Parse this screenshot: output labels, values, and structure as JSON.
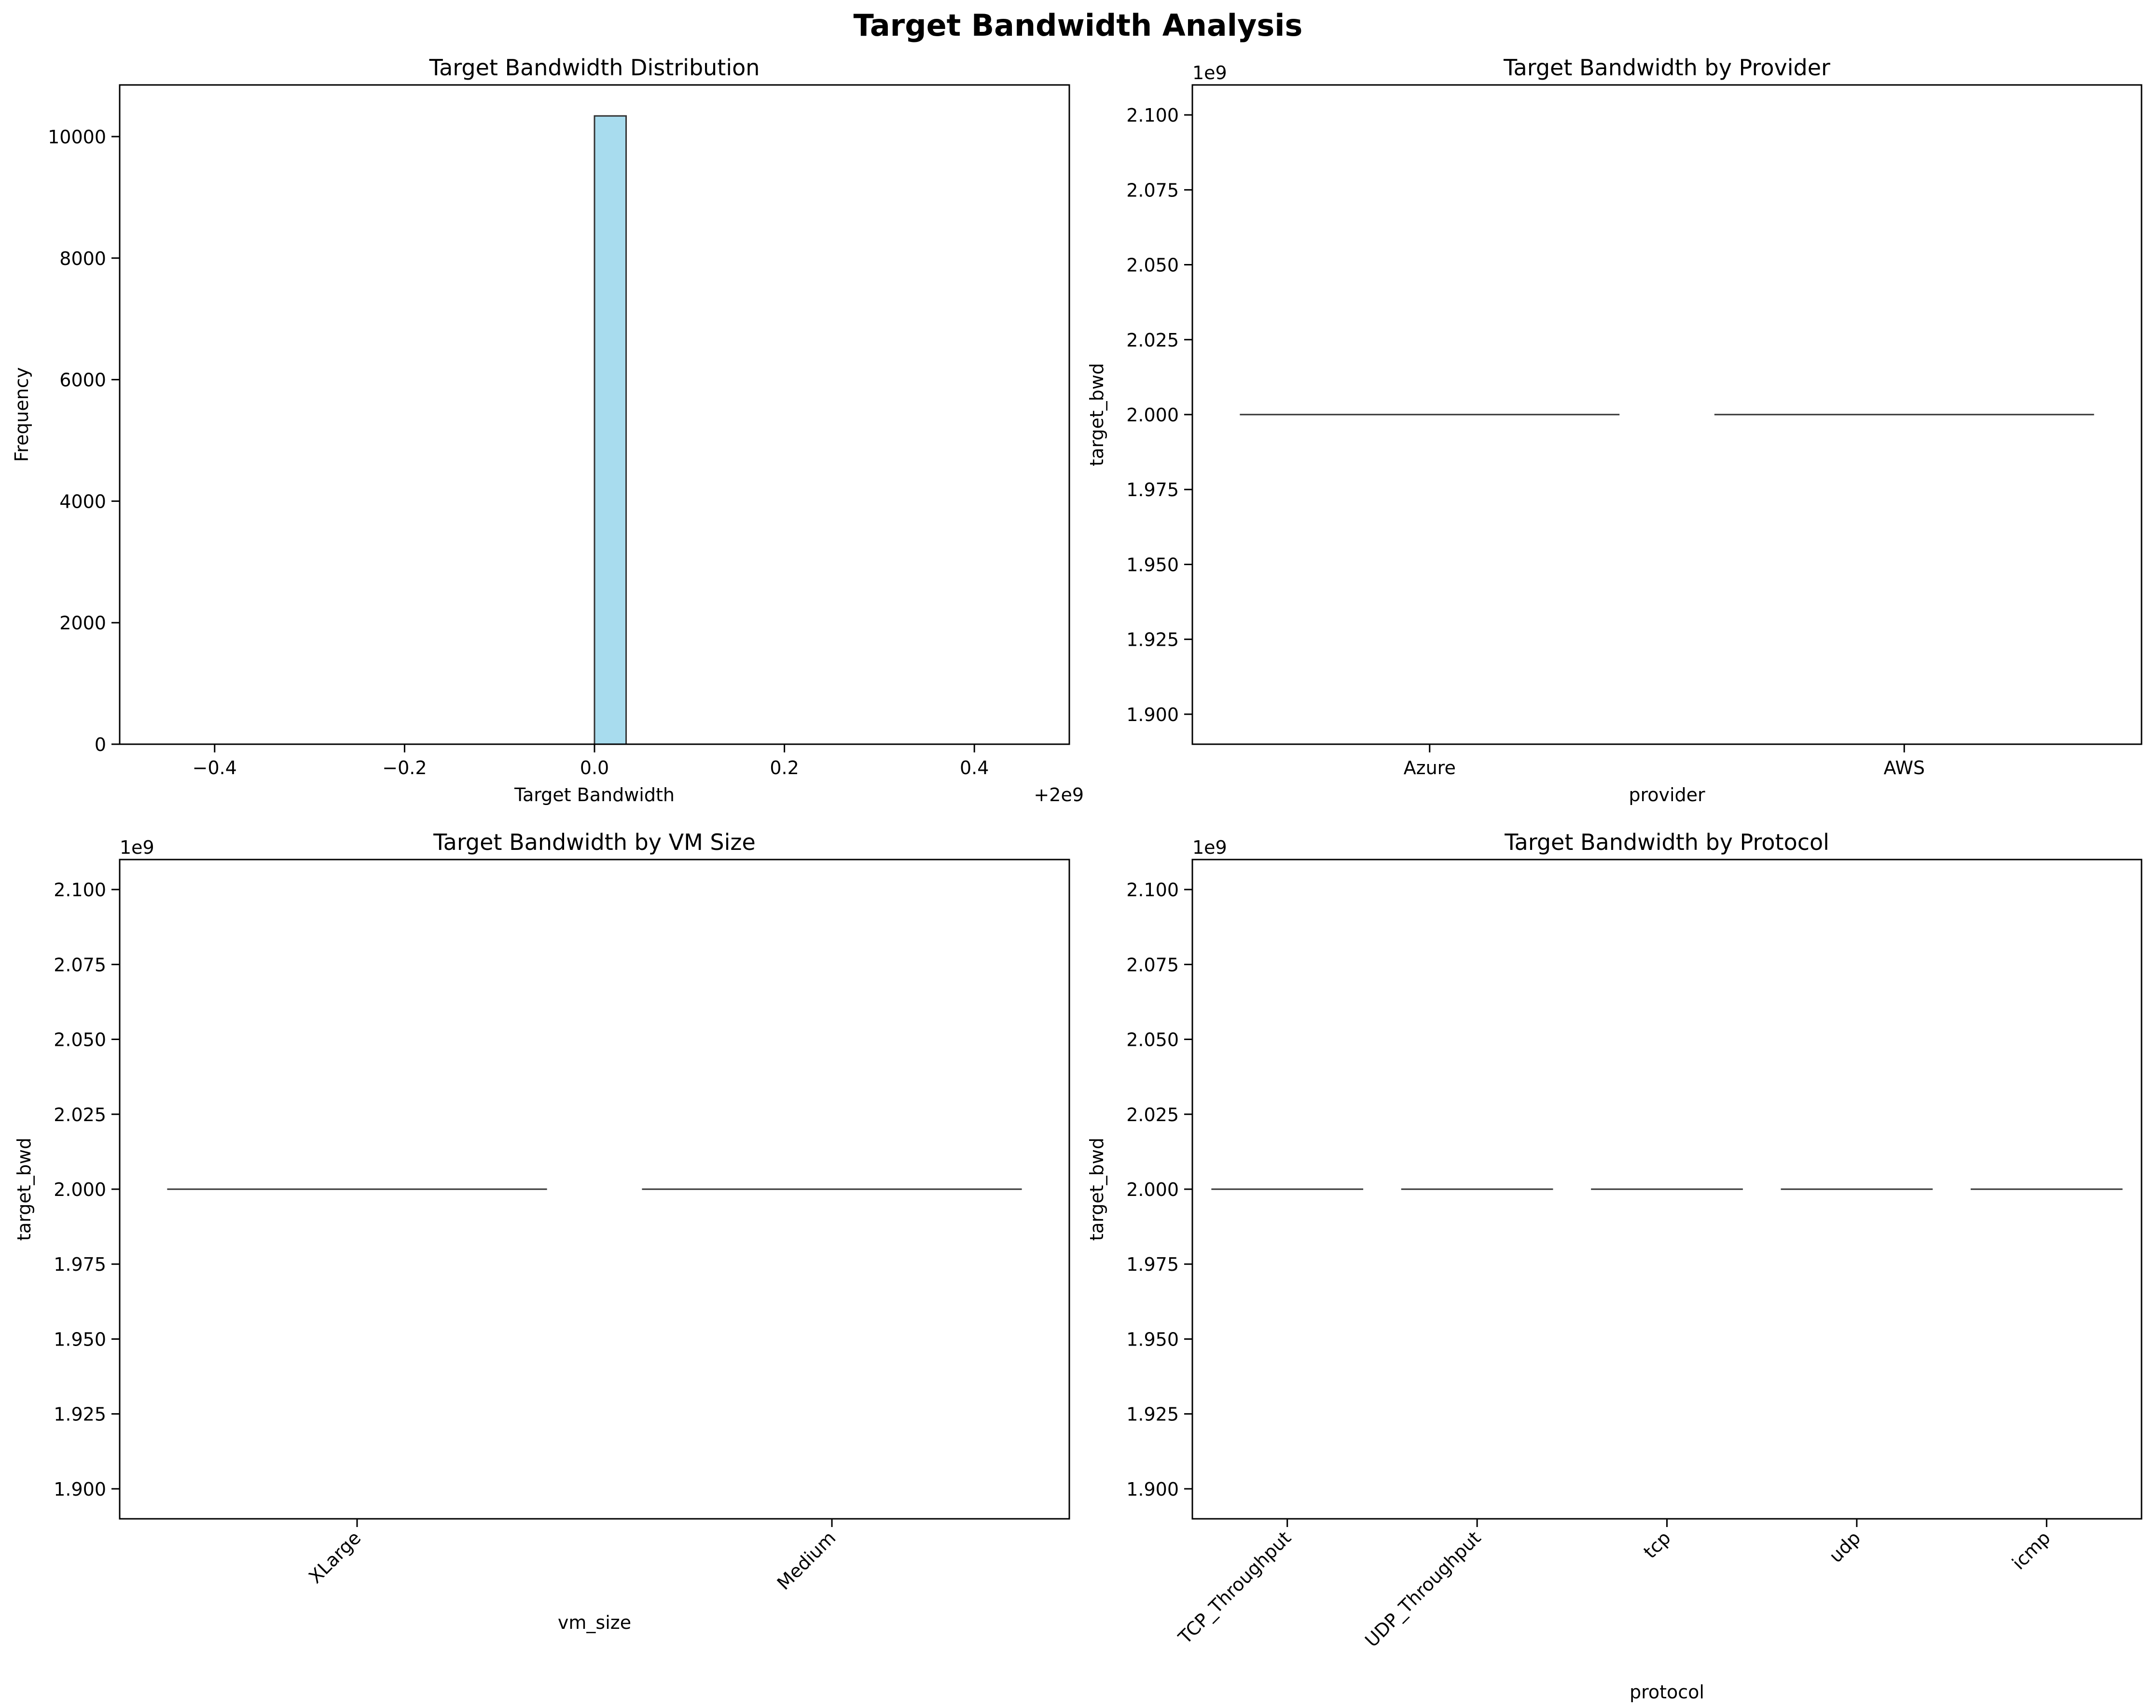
{
  "figure": {
    "suptitle": "Target Bandwidth Analysis"
  },
  "colors": {
    "hist_fill": "#a8dcee",
    "edge": "#333333",
    "text": "#000000"
  },
  "chart_data": [
    {
      "type": "bar",
      "title": "Target Bandwidth Distribution",
      "xlabel": "Target Bandwidth",
      "ylabel": "Frequency",
      "x_offset_label": "+2e9",
      "xlim": [
        -0.5,
        0.5
      ],
      "ylim": [
        0,
        10850
      ],
      "xticks": [
        -0.4,
        -0.2,
        0.0,
        0.2,
        0.4
      ],
      "xtick_labels": [
        "−0.4",
        "−0.2",
        "0.0",
        "0.2",
        "0.4"
      ],
      "yticks": [
        0,
        2000,
        4000,
        6000,
        8000,
        10000
      ],
      "ytick_labels": [
        "0",
        "2000",
        "4000",
        "6000",
        "8000",
        "10000"
      ],
      "bins": [
        {
          "x0": 0.0,
          "x1": 0.0333,
          "value": 10340
        }
      ],
      "baseline_range": [
        -0.5,
        0.5
      ],
      "grid": false
    },
    {
      "type": "violin",
      "title": "Target Bandwidth by Provider",
      "xlabel": "provider",
      "ylabel": "target_bwd",
      "y_scale_label": "1e9",
      "categories": [
        "Azure",
        "AWS"
      ],
      "values": [
        2.0,
        2.0
      ],
      "ylim": [
        1.89,
        2.11
      ],
      "yticks": [
        1.9,
        1.925,
        1.95,
        1.975,
        2.0,
        2.025,
        2.05,
        2.075,
        2.1
      ],
      "ytick_labels": [
        "1.900",
        "1.925",
        "1.950",
        "1.975",
        "2.000",
        "2.025",
        "2.050",
        "2.075",
        "2.100"
      ],
      "rotate_xticks": false,
      "grid": false
    },
    {
      "type": "violin",
      "title": "Target Bandwidth by VM Size",
      "xlabel": "vm_size",
      "ylabel": "target_bwd",
      "y_scale_label": "1e9",
      "categories": [
        "XLarge",
        "Medium"
      ],
      "values": [
        2.0,
        2.0
      ],
      "ylim": [
        1.89,
        2.11
      ],
      "yticks": [
        1.9,
        1.925,
        1.95,
        1.975,
        2.0,
        2.025,
        2.05,
        2.075,
        2.1
      ],
      "ytick_labels": [
        "1.900",
        "1.925",
        "1.950",
        "1.975",
        "2.000",
        "2.025",
        "2.050",
        "2.075",
        "2.100"
      ],
      "rotate_xticks": true,
      "grid": false
    },
    {
      "type": "violin",
      "title": "Target Bandwidth by Protocol",
      "xlabel": "protocol",
      "ylabel": "target_bwd",
      "y_scale_label": "1e9",
      "categories": [
        "TCP_Throughput",
        "UDP_Throughput",
        "tcp",
        "udp",
        "icmp"
      ],
      "values": [
        2.0,
        2.0,
        2.0,
        2.0,
        2.0
      ],
      "ylim": [
        1.89,
        2.11
      ],
      "yticks": [
        1.9,
        1.925,
        1.95,
        1.975,
        2.0,
        2.025,
        2.05,
        2.075,
        2.1
      ],
      "ytick_labels": [
        "1.900",
        "1.925",
        "1.950",
        "1.975",
        "2.000",
        "2.025",
        "2.050",
        "2.075",
        "2.100"
      ],
      "rotate_xticks": true,
      "grid": false
    }
  ]
}
